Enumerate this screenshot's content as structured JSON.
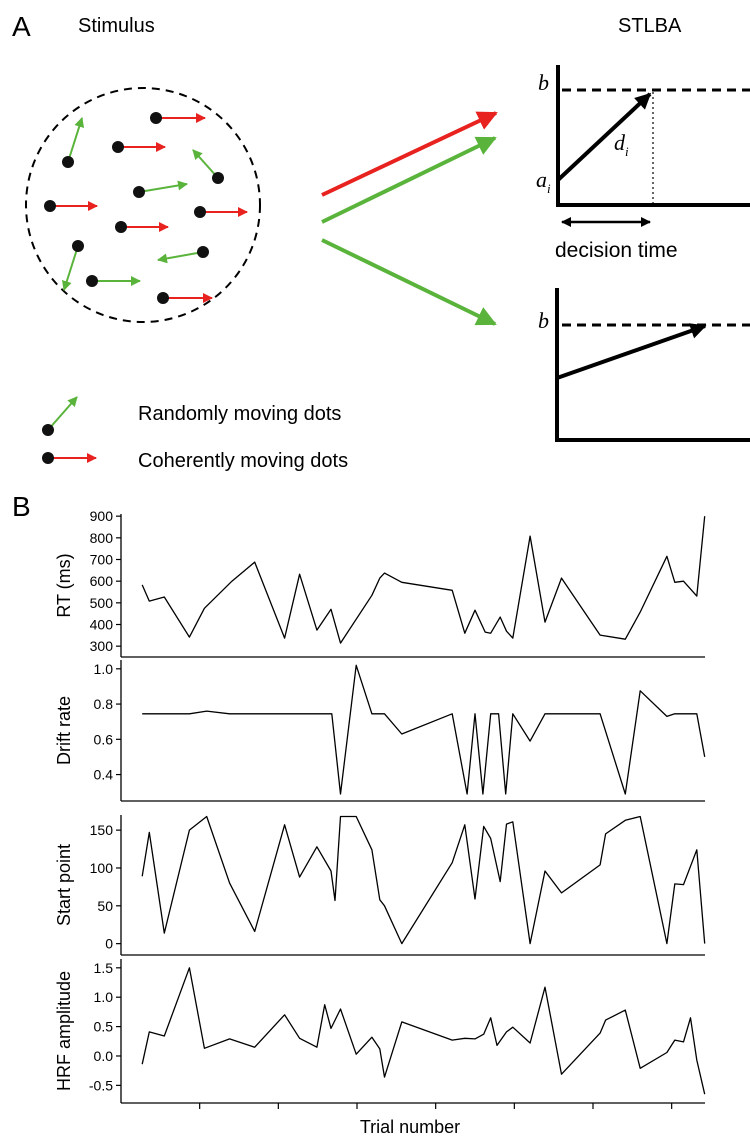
{
  "diagram": {
    "panel_a": "A",
    "stimulus_title": "Stimulus",
    "model_title": "STLBA",
    "threshold_top": "b",
    "start_point": "a",
    "start_point_sub": "i",
    "drift": "d",
    "drift_sub": "i",
    "decision_time": "decision time",
    "threshold_bottom": "b",
    "legend": [
      "Randomly moving dots",
      "Coherently moving dots"
    ],
    "panel_b": "B"
  },
  "chart_data": [
    {
      "type": "line",
      "ylabel": "RT (ms)",
      "color": "#000000",
      "x": [
        2.7,
        3.6,
        5.5,
        8.7,
        10.6,
        14.1,
        17.0,
        20.8,
        22.7,
        24.9,
        26.7,
        27.9,
        31.9,
        32.9,
        33.5,
        35.7,
        42.1,
        43.7,
        45.0,
        46.3,
        47.0,
        48.2,
        49.0,
        49.8,
        52.0,
        53.9,
        56.0,
        60.9,
        64.1,
        66.0,
        69.4,
        70.4,
        71.5,
        73.2,
        74.2
      ],
      "values": [
        583,
        508,
        527,
        342,
        475,
        600,
        688,
        337,
        632,
        374,
        470,
        314,
        535,
        614,
        637,
        595,
        558,
        360,
        466,
        365,
        360,
        434,
        369,
        337,
        808,
        411,
        614,
        351,
        332,
        457,
        715,
        595,
        600,
        531,
        900
      ],
      "xlim": [
        0,
        75
      ],
      "ylim": [
        250,
        910
      ],
      "yticks": [
        300,
        400,
        500,
        600,
        700,
        800,
        900
      ]
    },
    {
      "type": "line",
      "ylabel": "Drift rate",
      "color": "#000000",
      "x": [
        2.7,
        8.7,
        10.9,
        13.8,
        26.8,
        27.9,
        29.9,
        31.9,
        33.5,
        35.7,
        42.1,
        44.0,
        45.0,
        46.0,
        47.0,
        48.0,
        48.9,
        49.8,
        52.0,
        53.9,
        60.9,
        64.1,
        66.0,
        69.4,
        70.4,
        73.2,
        74.2
      ],
      "values": [
        0.745,
        0.745,
        0.76,
        0.745,
        0.745,
        0.29,
        1.02,
        0.745,
        0.745,
        0.63,
        0.745,
        0.29,
        0.745,
        0.29,
        0.745,
        0.745,
        0.29,
        0.745,
        0.59,
        0.745,
        0.745,
        0.29,
        0.875,
        0.73,
        0.745,
        0.745,
        0.5
      ],
      "xlim": [
        0,
        75
      ],
      "ylim": [
        0.25,
        1.05
      ],
      "yticks": [
        0.4,
        0.6,
        0.8,
        {
          "value": 1,
          "label": "1.0"
        }
      ]
    },
    {
      "type": "line",
      "ylabel": "Start point",
      "color": "#000000",
      "x": [
        2.7,
        3.6,
        5.5,
        8.7,
        10.9,
        13.8,
        17.0,
        20.8,
        22.7,
        24.9,
        26.7,
        27.2,
        27.9,
        29.9,
        31.9,
        32.9,
        33.5,
        35.7,
        42.1,
        43.7,
        45.0,
        46.1,
        47.0,
        48.2,
        49.0,
        49.8,
        52.0,
        53.9,
        56.0,
        60.9,
        61.6,
        64.1,
        66.0,
        69.4,
        70.4,
        71.5,
        73.2,
        74.2
      ],
      "values": [
        89,
        147,
        14,
        150,
        168,
        80,
        16,
        157,
        88,
        128,
        96,
        57,
        168,
        168,
        124,
        58,
        50,
        0,
        107,
        157,
        59,
        155,
        139,
        82,
        158,
        161,
        0,
        96,
        67,
        104,
        145,
        163,
        168,
        0,
        79,
        78,
        124,
        0
      ],
      "xlim": [
        0,
        75
      ],
      "ylim": [
        -15,
        170
      ],
      "yticks": [
        0,
        50,
        100,
        150
      ]
    },
    {
      "type": "line",
      "ylabel": "HRF amplitude",
      "xlabel": "Trial number",
      "color": "#000000",
      "x": [
        2.7,
        3.6,
        5.5,
        8.7,
        10.6,
        13.8,
        17.0,
        20.8,
        22.7,
        24.9,
        25.9,
        26.7,
        27.9,
        29.9,
        31.9,
        32.9,
        33.5,
        35.7,
        42.1,
        43.7,
        45.0,
        46.1,
        47.0,
        47.8,
        49.0,
        49.8,
        52.0,
        53.9,
        56.0,
        60.9,
        61.6,
        64.1,
        66.0,
        69.4,
        70.4,
        71.5,
        72.4,
        73.2,
        74.2
      ],
      "values": [
        -0.14,
        0.41,
        0.34,
        1.5,
        0.13,
        0.29,
        0.15,
        0.7,
        0.3,
        0.15,
        0.87,
        0.47,
        0.8,
        0.03,
        0.32,
        0.12,
        -0.36,
        0.58,
        0.27,
        0.3,
        0.29,
        0.37,
        0.65,
        0.18,
        0.41,
        0.49,
        0.22,
        1.17,
        -0.31,
        0.39,
        0.61,
        0.78,
        -0.21,
        0.06,
        0.27,
        0.24,
        0.65,
        -0.07,
        -0.65
      ],
      "xlim": [
        0,
        75
      ],
      "ylim": [
        -0.8,
        1.65
      ],
      "yticks": [
        -0.5,
        {
          "value": 0,
          "label": "0.0"
        },
        0.5,
        {
          "value": 1,
          "label": "1.0"
        },
        1.5
      ],
      "xticks": [
        10,
        20,
        30,
        40,
        50,
        60,
        70
      ]
    }
  ]
}
